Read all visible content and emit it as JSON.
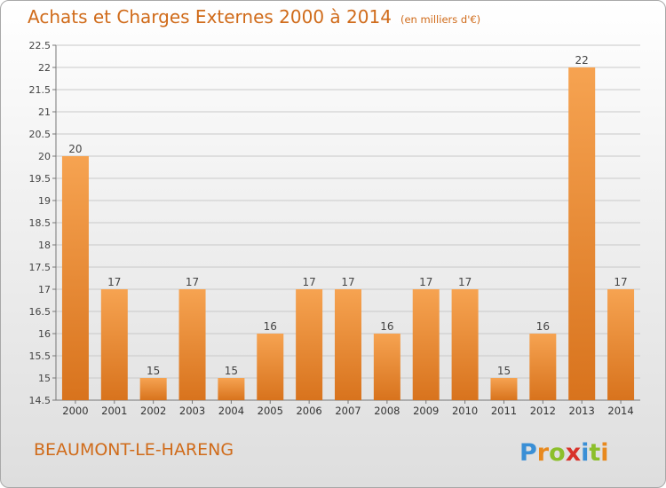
{
  "header": {
    "title": "Achats et Charges Externes 2000 à 2014",
    "unit": "(en milliers d'€)"
  },
  "footer": {
    "commune": "BEAUMONT-LE-HARENG",
    "logo": "Proxiti"
  },
  "colors": {
    "bar_light": "#f6a351",
    "bar_dark": "#d8731d",
    "title": "#d06b1a",
    "grid": "#c9c9c9"
  },
  "chart_data": {
    "type": "bar",
    "categories": [
      "2000",
      "2001",
      "2002",
      "2003",
      "2004",
      "2005",
      "2006",
      "2007",
      "2008",
      "2009",
      "2010",
      "2011",
      "2012",
      "2013",
      "2014"
    ],
    "values": [
      20,
      17,
      15,
      17,
      15,
      16,
      17,
      17,
      16,
      17,
      17,
      15,
      16,
      22,
      17
    ],
    "data_labels": [
      "20",
      "17",
      "15",
      "17",
      "15",
      "16",
      "17",
      "17",
      "16",
      "17",
      "17",
      "15",
      "16",
      "22",
      "17"
    ],
    "yticks": [
      14.5,
      15,
      15.5,
      16,
      16.5,
      17,
      17.5,
      18,
      18.5,
      19,
      19.5,
      20,
      20.5,
      21,
      21.5,
      22,
      22.5
    ],
    "ytick_labels": [
      "14.5",
      "15",
      "15.5",
      "16",
      "16.5",
      "17",
      "17.5",
      "18",
      "18.5",
      "19",
      "19.5",
      "20",
      "20.5",
      "21",
      "21.5",
      "22",
      "22.5"
    ],
    "ylim": [
      14.5,
      22.5
    ],
    "grid": true,
    "legend": "none"
  }
}
